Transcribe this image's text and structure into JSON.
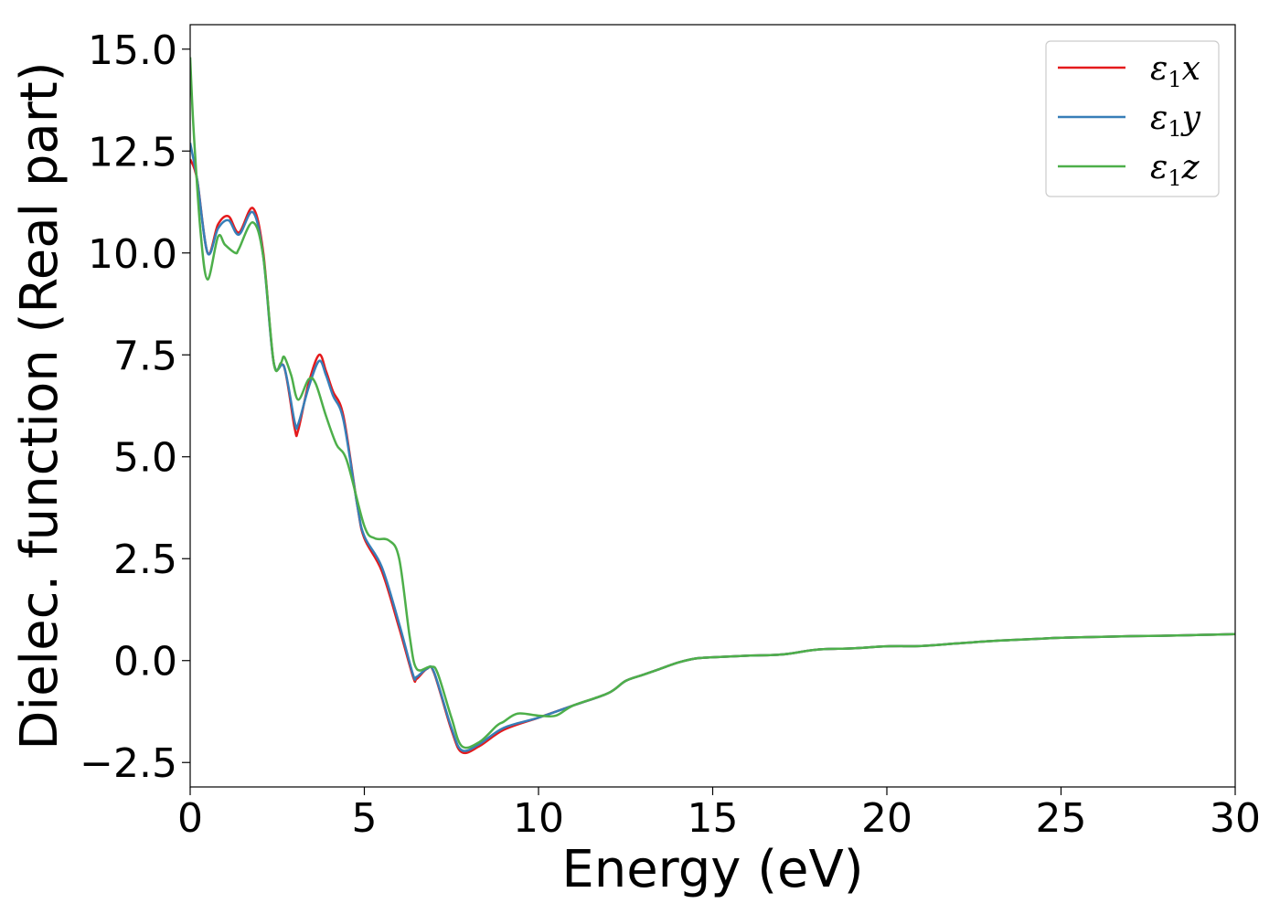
{
  "chart_data": {
    "type": "line",
    "xlabel": "Energy (eV)",
    "ylabel": "Dielec. function (Real part)",
    "xlim": [
      0,
      30
    ],
    "ylim": [
      -3.1,
      15.6
    ],
    "xticks": [
      0,
      5,
      10,
      15,
      20,
      25,
      30
    ],
    "xtick_labels": [
      "0",
      "5",
      "10",
      "15",
      "20",
      "25",
      "30"
    ],
    "yticks": [
      -2.5,
      0.0,
      2.5,
      5.0,
      7.5,
      10.0,
      12.5,
      15.0
    ],
    "ytick_labels": [
      "−2.5",
      "0.0",
      "2.5",
      "5.0",
      "7.5",
      "10.0",
      "12.5",
      "15.0"
    ],
    "grid": false,
    "legend_position": "top-right",
    "series": [
      {
        "name": "ε1x",
        "legend": {
          "symbol": "ε",
          "sub": "1",
          "var": "x"
        },
        "color": "#e41a1c",
        "x": [
          0,
          0.2,
          0.5,
          0.8,
          1.1,
          1.4,
          1.8,
          2.1,
          2.4,
          2.7,
          3.0,
          3.1,
          3.4,
          3.7,
          3.9,
          4.1,
          4.4,
          4.8,
          5.0,
          5.5,
          6.0,
          6.4,
          6.5,
          6.8,
          7.0,
          7.5,
          7.8,
          8.3,
          9.0,
          10.0,
          11.0,
          12.0,
          12.5,
          13.0,
          13.5,
          14.0,
          14.5,
          15.0,
          16.0,
          17.0,
          18.0,
          19.0,
          20.0,
          21.0,
          22.0,
          23.0,
          24.0,
          25.0,
          26.0,
          27.0,
          28.0,
          29.0,
          30.0
        ],
        "y": [
          12.3,
          11.8,
          10.0,
          10.7,
          10.9,
          10.5,
          11.1,
          10.0,
          7.3,
          7.2,
          5.7,
          5.65,
          6.8,
          7.5,
          7.1,
          6.6,
          6.0,
          3.8,
          3.0,
          2.2,
          0.8,
          -0.4,
          -0.45,
          -0.2,
          -0.3,
          -1.7,
          -2.25,
          -2.1,
          -1.7,
          -1.4,
          -1.1,
          -0.8,
          -0.5,
          -0.35,
          -0.2,
          -0.05,
          0.05,
          0.08,
          0.12,
          0.15,
          0.27,
          0.3,
          0.35,
          0.36,
          0.42,
          0.48,
          0.52,
          0.56,
          0.58,
          0.6,
          0.61,
          0.63,
          0.65
        ]
      },
      {
        "name": "ε1y",
        "legend": {
          "symbol": "ε",
          "sub": "1",
          "var": "y"
        },
        "color": "#377eb8",
        "x": [
          0,
          0.2,
          0.5,
          0.8,
          1.1,
          1.4,
          1.8,
          2.1,
          2.4,
          2.7,
          3.0,
          3.1,
          3.4,
          3.7,
          3.9,
          4.1,
          4.4,
          4.8,
          5.0,
          5.5,
          6.0,
          6.4,
          6.5,
          6.8,
          7.0,
          7.5,
          7.8,
          8.3,
          9.0,
          10.0,
          11.0,
          12.0,
          12.5,
          13.0,
          13.5,
          14.0,
          14.5,
          15.0,
          16.0,
          17.0,
          18.0,
          19.0,
          20.0,
          21.0,
          22.0,
          23.0,
          24.0,
          25.0,
          26.0,
          27.0,
          28.0,
          29.0,
          30.0
        ],
        "y": [
          12.7,
          11.8,
          10.0,
          10.6,
          10.8,
          10.45,
          11.0,
          9.9,
          7.3,
          7.2,
          5.85,
          5.8,
          6.7,
          7.35,
          7.0,
          6.5,
          5.9,
          3.8,
          3.05,
          2.3,
          0.9,
          -0.35,
          -0.4,
          -0.2,
          -0.28,
          -1.65,
          -2.2,
          -2.05,
          -1.65,
          -1.4,
          -1.1,
          -0.8,
          -0.5,
          -0.35,
          -0.2,
          -0.05,
          0.05,
          0.08,
          0.12,
          0.15,
          0.27,
          0.3,
          0.35,
          0.36,
          0.42,
          0.48,
          0.52,
          0.56,
          0.58,
          0.6,
          0.61,
          0.63,
          0.65
        ]
      },
      {
        "name": "ε1z",
        "legend": {
          "symbol": "ε",
          "sub": "1",
          "var": "z"
        },
        "color": "#4daf4a",
        "x": [
          0,
          0.1,
          0.3,
          0.5,
          0.8,
          1.0,
          1.3,
          1.4,
          1.8,
          2.1,
          2.4,
          2.6,
          2.7,
          2.9,
          3.1,
          3.4,
          3.6,
          3.9,
          4.2,
          4.5,
          5.0,
          5.3,
          5.7,
          6.0,
          6.3,
          6.5,
          6.9,
          7.1,
          7.5,
          7.8,
          8.3,
          8.8,
          9.0,
          9.4,
          10.0,
          10.5,
          11.0,
          12.0,
          12.5,
          13.0,
          13.5,
          14.0,
          14.5,
          15.0,
          16.0,
          17.0,
          18.0,
          19.0,
          20.0,
          21.0,
          22.0,
          23.0,
          24.0,
          25.0,
          26.0,
          27.0,
          28.0,
          29.0,
          30.0
        ],
        "y": [
          14.8,
          13.0,
          10.5,
          9.35,
          10.4,
          10.2,
          10.0,
          10.1,
          10.75,
          9.9,
          7.3,
          7.3,
          7.45,
          7.0,
          6.4,
          6.9,
          6.8,
          6.0,
          5.3,
          4.9,
          3.3,
          3.0,
          2.95,
          2.5,
          0.6,
          -0.2,
          -0.15,
          -0.3,
          -1.4,
          -2.1,
          -2.0,
          -1.6,
          -1.5,
          -1.3,
          -1.35,
          -1.35,
          -1.1,
          -0.8,
          -0.5,
          -0.35,
          -0.2,
          -0.05,
          0.05,
          0.08,
          0.12,
          0.15,
          0.27,
          0.3,
          0.35,
          0.36,
          0.42,
          0.48,
          0.52,
          0.56,
          0.58,
          0.6,
          0.61,
          0.63,
          0.65
        ]
      }
    ]
  }
}
